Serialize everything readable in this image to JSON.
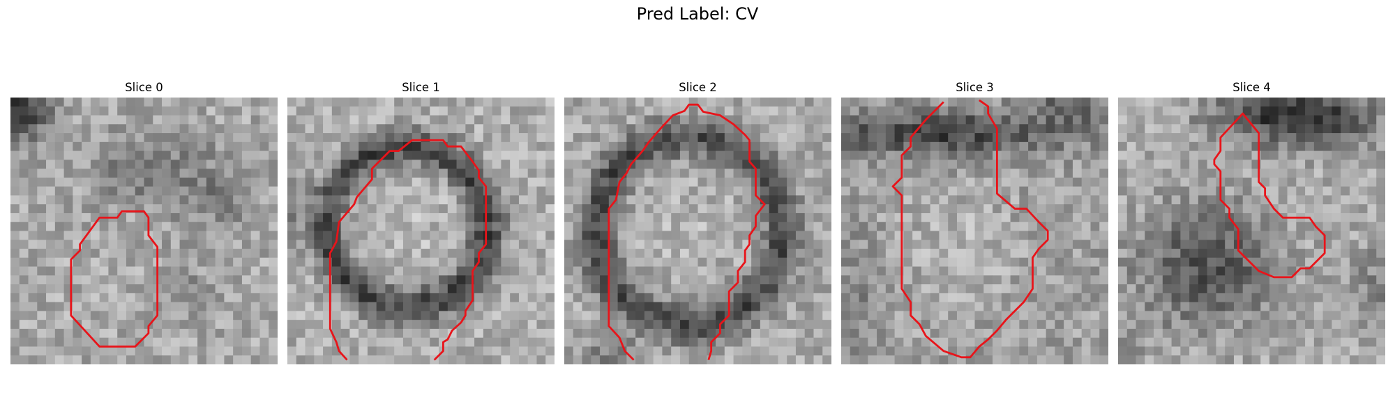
{
  "figure": {
    "title": "Pred Label: CV"
  },
  "colors": {
    "contour": "#e8141a",
    "background": "#ffffff",
    "colormap": "grayscale"
  },
  "panels": [
    {
      "title": "Slice 0"
    },
    {
      "title": "Slice 1"
    },
    {
      "title": "Slice 2"
    },
    {
      "title": "Slice 3"
    },
    {
      "title": "Slice 4"
    }
  ]
}
